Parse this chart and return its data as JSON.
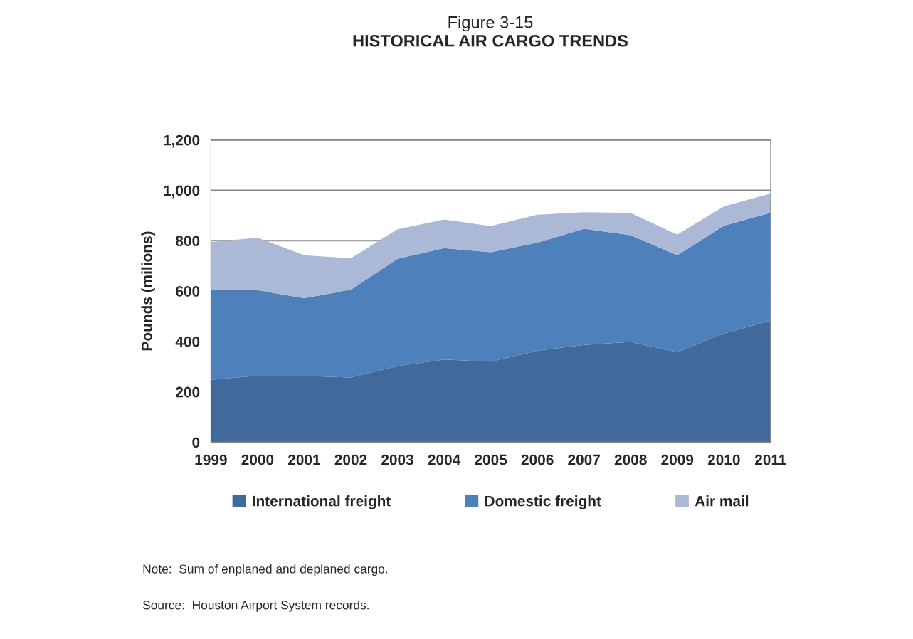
{
  "chart_data": {
    "type": "area",
    "stacked": true,
    "title": "Figure 3-15",
    "subtitle": "HISTORICAL AIR CARGO TRENDS",
    "ylabel": "Pounds (milions)",
    "categories": [
      "1999",
      "2000",
      "2001",
      "2002",
      "2003",
      "2004",
      "2005",
      "2006",
      "2007",
      "2008",
      "2009",
      "2010",
      "2011"
    ],
    "series": [
      {
        "name": "International freight",
        "color": "#41699b",
        "values": [
          248,
          264,
          263,
          257,
          302,
          328,
          320,
          363,
          386,
          398,
          357,
          431,
          483
        ]
      },
      {
        "name": "Domestic freight",
        "color": "#4e81bc",
        "values": [
          355,
          339,
          309,
          348,
          426,
          442,
          434,
          429,
          461,
          424,
          385,
          428,
          428
        ]
      },
      {
        "name": "Air mail",
        "color": "#abb9d6",
        "values": [
          191,
          209,
          170,
          125,
          117,
          114,
          104,
          111,
          66,
          88,
          82,
          77,
          76
        ]
      }
    ],
    "ylim": [
      0,
      1200
    ],
    "yticks": [
      0,
      200,
      400,
      600,
      800,
      {
        "value": 1000,
        "label": "1,000"
      },
      {
        "value": 1200,
        "label": "1,200"
      }
    ],
    "grid": "y",
    "legend": "bottom",
    "annotations": [
      "Note:  Sum of enplaned and deplaned cargo.",
      "Source:  Houston Airport System records."
    ]
  }
}
